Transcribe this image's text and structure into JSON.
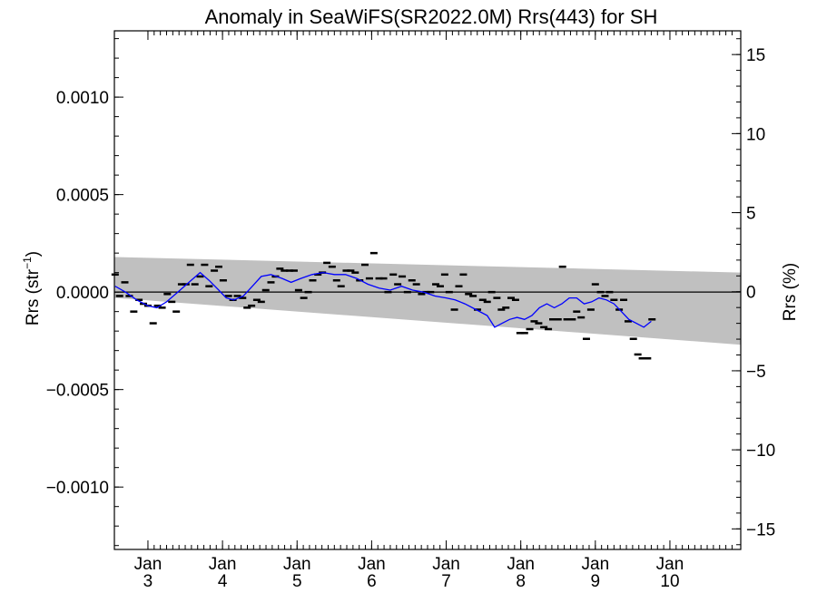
{
  "chart_data": {
    "type": "line",
    "title": "Anomaly in SeaWiFS(SR2022.0M) Rrs(443) for SH",
    "ylabel_left": "Rrs (str",
    "ylabel_left_sup": "−1",
    "ylabel_left_close": ")",
    "ylabel_right": "Rrs (%)",
    "xlim": [
      2.55,
      10.95
    ],
    "ylim_left": [
      -0.00132,
      0.00134
    ],
    "ylim_right": [
      -16.3,
      16.5
    ],
    "x_ticks": [
      {
        "x": 3,
        "top": "Jan",
        "bottom": "3"
      },
      {
        "x": 4,
        "top": "Jan",
        "bottom": "4"
      },
      {
        "x": 5,
        "top": "Jan",
        "bottom": "5"
      },
      {
        "x": 6,
        "top": "Jan",
        "bottom": "6"
      },
      {
        "x": 7,
        "top": "Jan",
        "bottom": "7"
      },
      {
        "x": 8,
        "top": "Jan",
        "bottom": "8"
      },
      {
        "x": 9,
        "top": "Jan",
        "bottom": "9"
      },
      {
        "x": 10,
        "top": "Jan",
        "bottom": "10"
      }
    ],
    "y_ticks_left": [
      {
        "v": 0.001,
        "label": "0.0010"
      },
      {
        "v": 0.0005,
        "label": "0.0005"
      },
      {
        "v": 0.0,
        "label": "0.0000"
      },
      {
        "v": -0.0005,
        "label": "−0.0005"
      },
      {
        "v": -0.001,
        "label": "−0.0010"
      }
    ],
    "y_ticks_right": [
      {
        "v": 15,
        "label": "15"
      },
      {
        "v": 10,
        "label": "10"
      },
      {
        "v": 5,
        "label": "5"
      },
      {
        "v": 0,
        "label": "0"
      },
      {
        "v": -5,
        "label": "−5"
      },
      {
        "v": -10,
        "label": "−10"
      },
      {
        "v": -15,
        "label": "−15"
      }
    ],
    "confidence_band": {
      "x": [
        2.55,
        10.95
      ],
      "upper": [
        0.00018,
        0.0001
      ],
      "lower": [
        -3e-05,
        -0.00027
      ]
    },
    "zero_line": 0,
    "monthly_points": [
      [
        2.56,
        9e-05
      ],
      [
        2.62,
        -2e-05
      ],
      [
        2.69,
        5e-05
      ],
      [
        2.75,
        -2e-05
      ],
      [
        2.81,
        -0.0001
      ],
      [
        2.88,
        -4e-05
      ],
      [
        2.94,
        -6e-05
      ],
      [
        3.0,
        -7e-05
      ],
      [
        3.07,
        -0.00016
      ],
      [
        3.13,
        -7e-05
      ],
      [
        3.19,
        -8e-05
      ],
      [
        3.26,
        -1e-05
      ],
      [
        3.32,
        -5e-05
      ],
      [
        3.38,
        -0.0001
      ],
      [
        3.45,
        4e-05
      ],
      [
        3.51,
        4e-05
      ],
      [
        3.57,
        0.00014
      ],
      [
        3.63,
        4e-05
      ],
      [
        3.7,
        8e-05
      ],
      [
        3.76,
        0.00014
      ],
      [
        3.82,
        3e-05
      ],
      [
        3.89,
        0.00011
      ],
      [
        3.95,
        0.00013
      ],
      [
        4.01,
        6e-05
      ],
      [
        4.08,
        -2e-05
      ],
      [
        4.14,
        -4e-05
      ],
      [
        4.2,
        -2e-05
      ],
      [
        4.27,
        -3e-05
      ],
      [
        4.33,
        -8e-05
      ],
      [
        4.39,
        -7e-05
      ],
      [
        4.46,
        -4e-05
      ],
      [
        4.52,
        -5e-05
      ],
      [
        4.58,
        1e-05
      ],
      [
        4.65,
        5e-05
      ],
      [
        4.71,
        8e-05
      ],
      [
        4.77,
        0.00012
      ],
      [
        4.83,
        0.00011
      ],
      [
        4.9,
        0.00011
      ],
      [
        4.96,
        0.00011
      ],
      [
        5.02,
        1e-05
      ],
      [
        5.09,
        -3e-05
      ],
      [
        5.15,
        0.0
      ],
      [
        5.21,
        6e-05
      ],
      [
        5.28,
        9e-05
      ],
      [
        5.34,
        0.0001
      ],
      [
        5.4,
        0.00015
      ],
      [
        5.47,
        0.00013
      ],
      [
        5.53,
        6e-05
      ],
      [
        5.59,
        3e-05
      ],
      [
        5.66,
        0.00011
      ],
      [
        5.72,
        0.00011
      ],
      [
        5.78,
        0.0001
      ],
      [
        5.84,
        6e-05
      ],
      [
        5.91,
        0.00014
      ],
      [
        5.97,
        7e-05
      ],
      [
        6.03,
        0.0002
      ],
      [
        6.1,
        7e-05
      ],
      [
        6.16,
        7e-05
      ],
      [
        6.22,
        0.0
      ],
      [
        6.29,
        9e-05
      ],
      [
        6.35,
        4e-05
      ],
      [
        6.41,
        8e-05
      ],
      [
        6.48,
        0.0
      ],
      [
        6.54,
        6e-05
      ],
      [
        6.6,
        4e-05
      ],
      [
        6.67,
        -1e-05
      ],
      [
        6.73,
        0.0
      ],
      [
        6.79,
        0.0
      ],
      [
        6.86,
        4e-05
      ],
      [
        6.92,
        3e-05
      ],
      [
        6.98,
        9e-05
      ],
      [
        7.04,
        0.0
      ],
      [
        7.11,
        -9e-05
      ],
      [
        7.17,
        3e-05
      ],
      [
        7.23,
        9e-05
      ],
      [
        7.3,
        -1e-05
      ],
      [
        7.36,
        -2e-05
      ],
      [
        7.42,
        -9e-05
      ],
      [
        7.49,
        -4e-05
      ],
      [
        7.55,
        -5e-05
      ],
      [
        7.61,
        0.0
      ],
      [
        7.68,
        -3e-05
      ],
      [
        7.74,
        -9e-05
      ],
      [
        7.8,
        -8e-05
      ],
      [
        7.87,
        -3e-05
      ],
      [
        7.93,
        -4e-05
      ],
      [
        7.99,
        -0.00021
      ],
      [
        8.05,
        -0.00021
      ],
      [
        8.12,
        -0.00019
      ],
      [
        8.18,
        -0.00015
      ],
      [
        8.24,
        -0.00016
      ],
      [
        8.31,
        -0.00018
      ],
      [
        8.37,
        -0.00019
      ],
      [
        8.43,
        -0.00014
      ],
      [
        8.5,
        -0.00014
      ],
      [
        8.56,
        0.00013
      ],
      [
        8.62,
        -0.00014
      ],
      [
        8.69,
        -0.00014
      ],
      [
        8.75,
        -0.0001
      ],
      [
        8.81,
        -0.00013
      ],
      [
        8.88,
        -0.00024
      ],
      [
        8.94,
        -9e-05
      ],
      [
        9.0,
        4e-05
      ],
      [
        9.07,
        0.0
      ],
      [
        9.13,
        -2e-05
      ],
      [
        9.19,
        0.0
      ],
      [
        9.25,
        -4e-05
      ],
      [
        9.32,
        -9e-05
      ],
      [
        9.38,
        -4e-05
      ],
      [
        9.44,
        -0.00015
      ],
      [
        9.51,
        -0.00024
      ],
      [
        9.57,
        -0.00032
      ],
      [
        9.63,
        -0.00034
      ],
      [
        9.7,
        -0.00034
      ],
      [
        9.76,
        -0.00014
      ]
    ],
    "smoothed_line": [
      [
        2.56,
        3e-05
      ],
      [
        2.7,
        0.0
      ],
      [
        2.85,
        -4e-05
      ],
      [
        3.0,
        -7e-05
      ],
      [
        3.12,
        -8e-05
      ],
      [
        3.25,
        -5e-05
      ],
      [
        3.4,
        0.0
      ],
      [
        3.55,
        5e-05
      ],
      [
        3.7,
        0.0001
      ],
      [
        3.82,
        6e-05
      ],
      [
        3.95,
        1e-05
      ],
      [
        4.05,
        -3e-05
      ],
      [
        4.15,
        -4e-05
      ],
      [
        4.28,
        -2e-05
      ],
      [
        4.4,
        3e-05
      ],
      [
        4.52,
        8e-05
      ],
      [
        4.65,
        9e-05
      ],
      [
        4.8,
        7e-05
      ],
      [
        4.92,
        5e-05
      ],
      [
        5.05,
        7e-05
      ],
      [
        5.2,
        9e-05
      ],
      [
        5.35,
        0.0001
      ],
      [
        5.5,
        9e-05
      ],
      [
        5.65,
        9e-05
      ],
      [
        5.8,
        7e-05
      ],
      [
        5.95,
        4e-05
      ],
      [
        6.1,
        2e-05
      ],
      [
        6.25,
        1e-05
      ],
      [
        6.4,
        3e-05
      ],
      [
        6.55,
        1e-05
      ],
      [
        6.7,
        0.0
      ],
      [
        6.85,
        -2e-05
      ],
      [
        7.0,
        -3e-05
      ],
      [
        7.12,
        -4e-05
      ],
      [
        7.25,
        -6e-05
      ],
      [
        7.4,
        -9e-05
      ],
      [
        7.55,
        -0.00012
      ],
      [
        7.65,
        -0.00018
      ],
      [
        7.75,
        -0.00016
      ],
      [
        7.85,
        -0.00014
      ],
      [
        7.95,
        -0.00013
      ],
      [
        8.05,
        -0.00014
      ],
      [
        8.15,
        -0.00012
      ],
      [
        8.25,
        -8e-05
      ],
      [
        8.35,
        -6e-05
      ],
      [
        8.45,
        -8e-05
      ],
      [
        8.55,
        -6e-05
      ],
      [
        8.65,
        -3e-05
      ],
      [
        8.75,
        -3e-05
      ],
      [
        8.85,
        -6e-05
      ],
      [
        8.95,
        -5e-05
      ],
      [
        9.05,
        -3e-05
      ],
      [
        9.15,
        -4e-05
      ],
      [
        9.25,
        -6e-05
      ],
      [
        9.35,
        -0.0001
      ],
      [
        9.45,
        -0.00014
      ],
      [
        9.55,
        -0.00016
      ],
      [
        9.65,
        -0.00018
      ],
      [
        9.75,
        -0.00015
      ]
    ],
    "colors": {
      "band": "#c0c0c0",
      "smoothed": "#0000ff",
      "points": "#000000",
      "axes": "#000000"
    },
    "grid": false
  }
}
